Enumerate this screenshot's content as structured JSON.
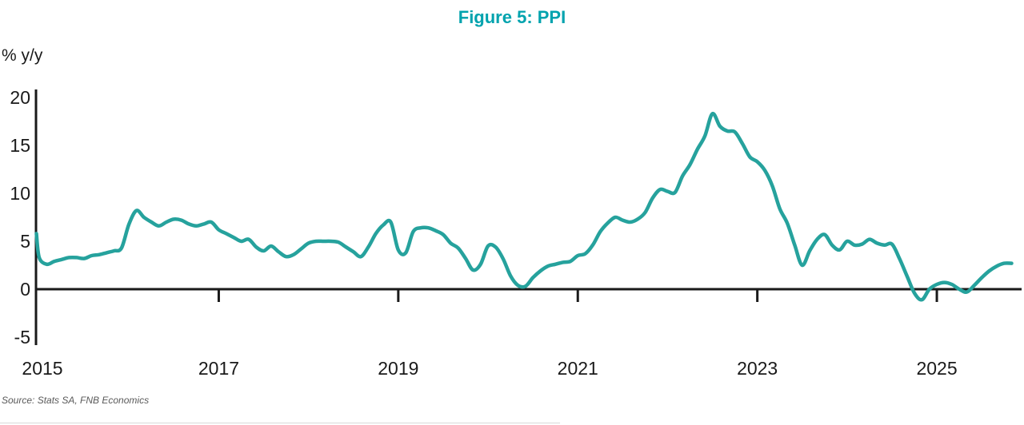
{
  "header": {
    "title": "Figure 5: PPI"
  },
  "axes": {
    "unit_label": "% y/y",
    "y_ticks": [
      20,
      15,
      10,
      5,
      0,
      -5
    ],
    "x_tick_labels": [
      "2015",
      "2017",
      "2019",
      "2021",
      "2023",
      "2025"
    ]
  },
  "footer": {
    "source": "Source: Stats SA, FNB Economics"
  },
  "colors": {
    "title": "#00A3AE",
    "line": "#26A29D",
    "axis": "#1a1a1a",
    "tick_text": "#1a1a1a",
    "source_text": "#595959"
  },
  "chart_data": {
    "type": "line",
    "title": "Figure 5: PPI",
    "ylabel": "% y/y",
    "series_name": "PPI % y/y",
    "frequency": "monthly",
    "start_month": "2014-12",
    "end_month": "2025-11",
    "ylim": [
      -5,
      20
    ],
    "grid": false,
    "legend_position": "none",
    "x_tick_years": [
      2015,
      2017,
      2019,
      2021,
      2023,
      2025
    ],
    "values": [
      5.8,
      3.3,
      2.6,
      2.9,
      3.1,
      3.3,
      3.3,
      3.2,
      3.5,
      3.6,
      3.8,
      4.0,
      4.3,
      6.8,
      8.2,
      7.5,
      7.0,
      6.6,
      7.0,
      7.3,
      7.2,
      6.8,
      6.6,
      6.8,
      7.0,
      6.2,
      5.8,
      5.4,
      5.0,
      5.2,
      4.4,
      4.0,
      4.5,
      3.9,
      3.4,
      3.6,
      4.2,
      4.8,
      5.0,
      5.0,
      5.0,
      4.9,
      4.4,
      3.9,
      3.4,
      4.4,
      5.8,
      6.7,
      7.0,
      4.1,
      3.8,
      6.0,
      6.4,
      6.4,
      6.1,
      5.7,
      4.8,
      4.3,
      3.2,
      2.0,
      2.6,
      4.5,
      4.4,
      3.2,
      1.4,
      0.4,
      0.3,
      1.2,
      1.9,
      2.4,
      2.6,
      2.8,
      2.9,
      3.5,
      3.7,
      4.6,
      6.0,
      6.9,
      7.5,
      7.2,
      7.0,
      7.3,
      8.0,
      9.5,
      10.4,
      10.2,
      10.1,
      11.8,
      13.0,
      14.6,
      16.0,
      18.3,
      17.0,
      16.5,
      16.4,
      15.2,
      13.8,
      13.3,
      12.4,
      10.8,
      8.4,
      6.9,
      4.6,
      2.5,
      4.0,
      5.2,
      5.7,
      4.6,
      4.1,
      5.0,
      4.6,
      4.7,
      5.2,
      4.8,
      4.6,
      4.7,
      3.2,
      1.4,
      -0.4,
      -1.1,
      0.0,
      0.5,
      0.7,
      0.5,
      0.0,
      -0.3,
      0.4,
      1.2,
      1.9,
      2.4,
      2.7,
      2.7
    ]
  }
}
